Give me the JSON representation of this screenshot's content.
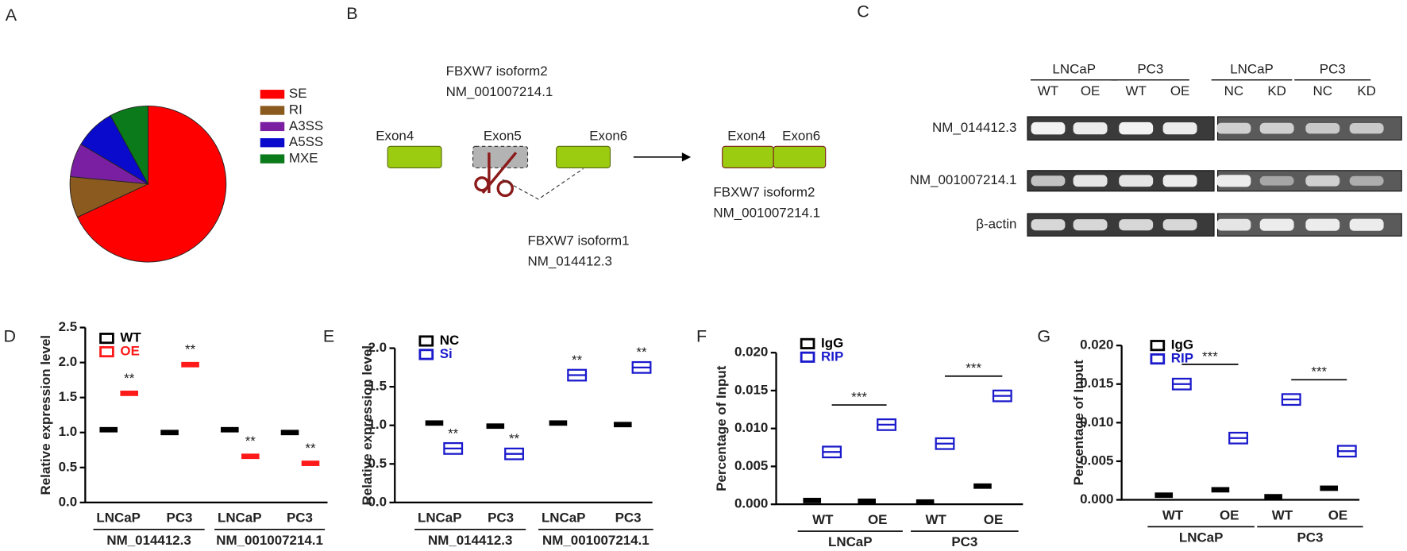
{
  "panels": [
    "A",
    "B",
    "C",
    "D",
    "E",
    "F",
    "G"
  ],
  "chart_data": [
    {
      "type": "pie",
      "categories": [
        "SE",
        "RI",
        "A3SS",
        "A5SS",
        "MXE"
      ],
      "values": [
        68,
        8.5,
        7,
        8.5,
        8
      ],
      "colors": [
        "#ff0000",
        "#8b5a1e",
        "#7b1fa2",
        "#0a0acc",
        "#0a7a1a"
      ],
      "legend": "right"
    },
    {
      "type": "box",
      "ylabel": "Relative expression level",
      "categories": [
        "LNCaP",
        "PC3",
        "LNCaP",
        "PC3"
      ],
      "groups": [
        "NM_014412.3",
        "NM_001007214.1"
      ],
      "series": [
        {
          "name": "WT",
          "color": "#000000",
          "fill": "filled",
          "values": [
            1.04,
            1.0,
            1.04,
            1.0
          ]
        },
        {
          "name": "OE",
          "color": "#ff1a1a",
          "fill": "filled",
          "values": [
            1.56,
            1.97,
            0.66,
            0.56
          ]
        }
      ],
      "annotations": [
        "**",
        "**",
        "**",
        "**"
      ],
      "ylim": [
        0,
        2.5
      ],
      "yticks": [
        {
          "value": 0,
          "label": "0.0"
        },
        0.5,
        {
          "value": 1,
          "label": "1.0"
        },
        1.5,
        {
          "value": 2,
          "label": "2.0"
        },
        2.5
      ],
      "legend": "top-left"
    },
    {
      "type": "box",
      "ylabel": "Relative expression level",
      "categories": [
        "LNCaP",
        "PC3",
        "LNCaP",
        "PC3"
      ],
      "groups": [
        "NM_014412.3",
        "NM_001007214.1"
      ],
      "series": [
        {
          "name": "NC",
          "color": "#000000",
          "fill": "filled",
          "values": [
            1.03,
            0.99,
            1.03,
            1.01
          ]
        },
        {
          "name": "Si",
          "color": "#1a1acc",
          "fill": "open",
          "values": [
            0.7,
            0.63,
            1.65,
            1.75
          ]
        }
      ],
      "annotations": [
        "**",
        "**",
        "**",
        "**"
      ],
      "ylim": [
        0,
        2.0
      ],
      "yticks": [
        {
          "value": 0,
          "label": "0.0"
        },
        0.5,
        {
          "value": 1,
          "label": "1.0"
        },
        1.5,
        {
          "value": 2,
          "label": "2.0"
        }
      ],
      "legend": "top-left"
    },
    {
      "type": "box",
      "ylabel": "Percentage of Input",
      "categories": [
        "WT",
        "OE",
        "WT",
        "OE"
      ],
      "groups": [
        "LNCaP",
        "PC3"
      ],
      "series": [
        {
          "name": "IgG",
          "color": "#000000",
          "fill": "filled",
          "values": [
            0.0005,
            0.0004,
            0.0003,
            0.0024
          ]
        },
        {
          "name": "RIP",
          "color": "#1a1acc",
          "fill": "open",
          "values": [
            0.0069,
            0.0105,
            0.008,
            0.0143
          ]
        }
      ],
      "brackets": [
        "***",
        "***"
      ],
      "ylim": [
        0,
        0.02
      ],
      "yticks": [
        {
          "value": 0,
          "label": "0.000"
        },
        0.005,
        {
          "value": 0.01,
          "label": "0.010"
        },
        0.015,
        {
          "value": 0.02,
          "label": "0.020"
        }
      ],
      "legend": "top-left"
    },
    {
      "type": "box",
      "ylabel": "Percentage of Input",
      "categories": [
        "WT",
        "OE",
        "WT",
        "OE"
      ],
      "groups": [
        "LNCaP",
        "PC3"
      ],
      "series": [
        {
          "name": "IgG",
          "color": "#000000",
          "fill": "filled",
          "values": [
            0.0006,
            0.0013,
            0.0004,
            0.0015
          ]
        },
        {
          "name": "RIP",
          "color": "#1a1acc",
          "fill": "open",
          "values": [
            0.015,
            0.008,
            0.013,
            0.0063
          ]
        }
      ],
      "brackets": [
        "***",
        "***"
      ],
      "ylim": [
        0,
        0.02
      ],
      "yticks": [
        {
          "value": 0,
          "label": "0.000"
        },
        0.005,
        {
          "value": 0.01,
          "label": "0.010"
        },
        0.015,
        {
          "value": 0.02,
          "label": "0.020"
        }
      ],
      "legend": "top-left"
    }
  ],
  "diagram": {
    "top_label": [
      "FBXW7 isoform2",
      "NM_001007214.1"
    ],
    "exons": [
      "Exon4",
      "Exon5",
      "Exon6"
    ],
    "skipped_label": [
      "FBXW7 isoform1",
      "NM_014412.3"
    ],
    "result_exons": [
      "Exon4",
      "Exon6"
    ],
    "result_label": [
      "FBXW7 isoform2",
      "NM_001007214.1"
    ]
  },
  "blot": {
    "cell_lines": [
      "LNCaP",
      "PC3",
      "LNCaP",
      "PC3"
    ],
    "lanes": [
      "WT",
      "OE",
      "WT",
      "OE",
      "NC",
      "KD",
      "NC",
      "KD"
    ],
    "rows": [
      "NM_014412.3",
      "NM_001007214.1",
      "β-actin"
    ]
  }
}
